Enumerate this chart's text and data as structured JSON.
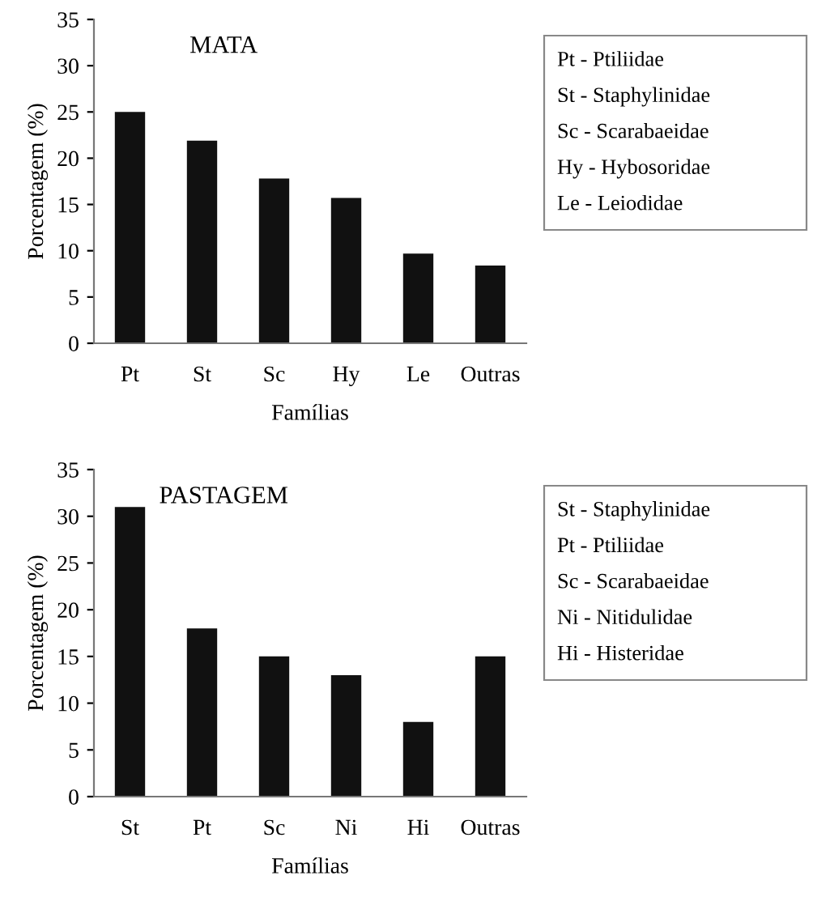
{
  "chart_data": [
    {
      "type": "bar",
      "title": "MATA",
      "xlabel": "Famílias",
      "ylabel": "Porcentagem (%)",
      "categories": [
        "Pt",
        "St",
        "Sc",
        "Hy",
        "Le",
        "Outras"
      ],
      "values": [
        25,
        21.9,
        17.8,
        15.7,
        9.7,
        8.4
      ],
      "color": "#111111",
      "ylim": [
        0,
        35
      ],
      "yticks": [
        0,
        5,
        10,
        15,
        20,
        25,
        30,
        35
      ],
      "grid": false,
      "annotations": [
        "Pt - Ptiliidae",
        "St - Staphylinidae",
        "Sc - Scarabaeidae",
        "Hy - Hybosoridae",
        "Le - Leiodidae"
      ]
    },
    {
      "type": "bar",
      "title": "PASTAGEM",
      "xlabel": "Famílias",
      "ylabel": "Porcentagem (%)",
      "categories": [
        "St",
        "Pt",
        "Sc",
        "Ni",
        "Hi",
        "Outras"
      ],
      "values": [
        31,
        18,
        15,
        13,
        8,
        15
      ],
      "color": "#111111",
      "ylim": [
        0,
        35
      ],
      "yticks": [
        0,
        5,
        10,
        15,
        20,
        25,
        30,
        35
      ],
      "grid": false,
      "annotations": [
        "St - Staphylinidae",
        "Pt - Ptiliidae",
        "Sc - Scarabaeidae",
        "Ni - Nitidulidae",
        "Hi - Histeridae"
      ]
    }
  ]
}
